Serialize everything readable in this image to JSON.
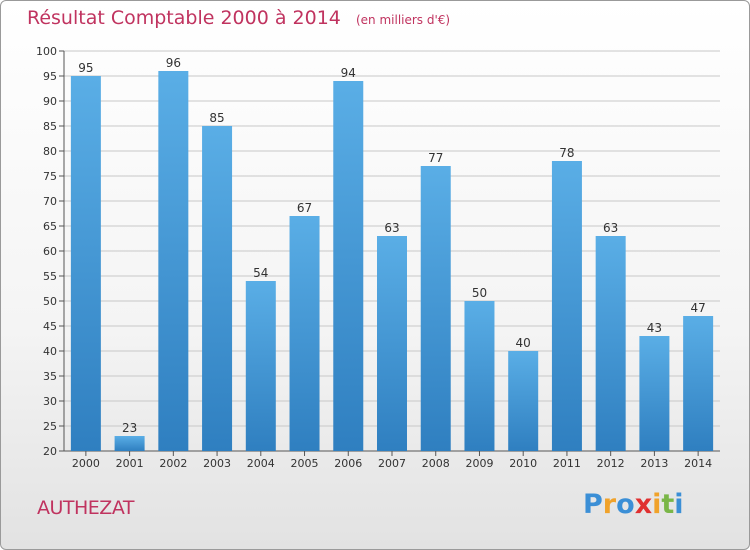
{
  "chart_data": {
    "type": "bar",
    "title": "Résultat Comptable 2000 à 2014",
    "unit_note": "(en milliers d'€)",
    "categories": [
      "2000",
      "2001",
      "2002",
      "2003",
      "2004",
      "2005",
      "2006",
      "2007",
      "2008",
      "2009",
      "2010",
      "2011",
      "2012",
      "2013",
      "2014"
    ],
    "values": [
      95,
      23,
      96,
      85,
      54,
      67,
      94,
      63,
      77,
      50,
      40,
      78,
      63,
      43,
      47
    ],
    "ylim": [
      20,
      100
    ],
    "yticks": [
      20,
      25,
      30,
      35,
      40,
      45,
      50,
      55,
      60,
      65,
      70,
      75,
      80,
      85,
      90,
      95,
      100
    ],
    "grid": true,
    "legend": "none",
    "colors": {
      "bar_top": "#5aaee6",
      "bar_bottom": "#2f7fc0",
      "grid": "#c8c8c8",
      "text": "#333333",
      "title": "#c0335f"
    }
  },
  "commune": "AUTHEZAT",
  "brand": {
    "letters": [
      "P",
      "r",
      "o",
      "x",
      "i",
      "t",
      "i"
    ],
    "colors": [
      "#3b8fd6",
      "#f0a22a",
      "#3b8fd6",
      "#e03030",
      "#f0a22a",
      "#7ab648",
      "#3b8fd6"
    ]
  }
}
